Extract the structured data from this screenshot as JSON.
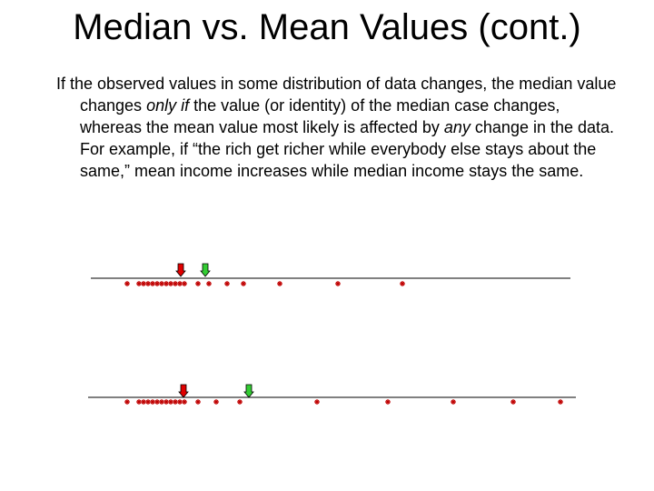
{
  "title": "Median vs. Mean Values (cont.)",
  "body": {
    "text_1": "If the observed values in some distribution of data changes, the median value changes ",
    "emphasis_1": "only if",
    "text_2": " the value (or identity) of the median case changes, whereas the mean value most likely is affected by ",
    "emphasis_2": "any",
    "text_3": " change in the data.  For example, if “the rich get richer while everybody else stays about the same,” mean income increases while median income stays the same."
  }
}
